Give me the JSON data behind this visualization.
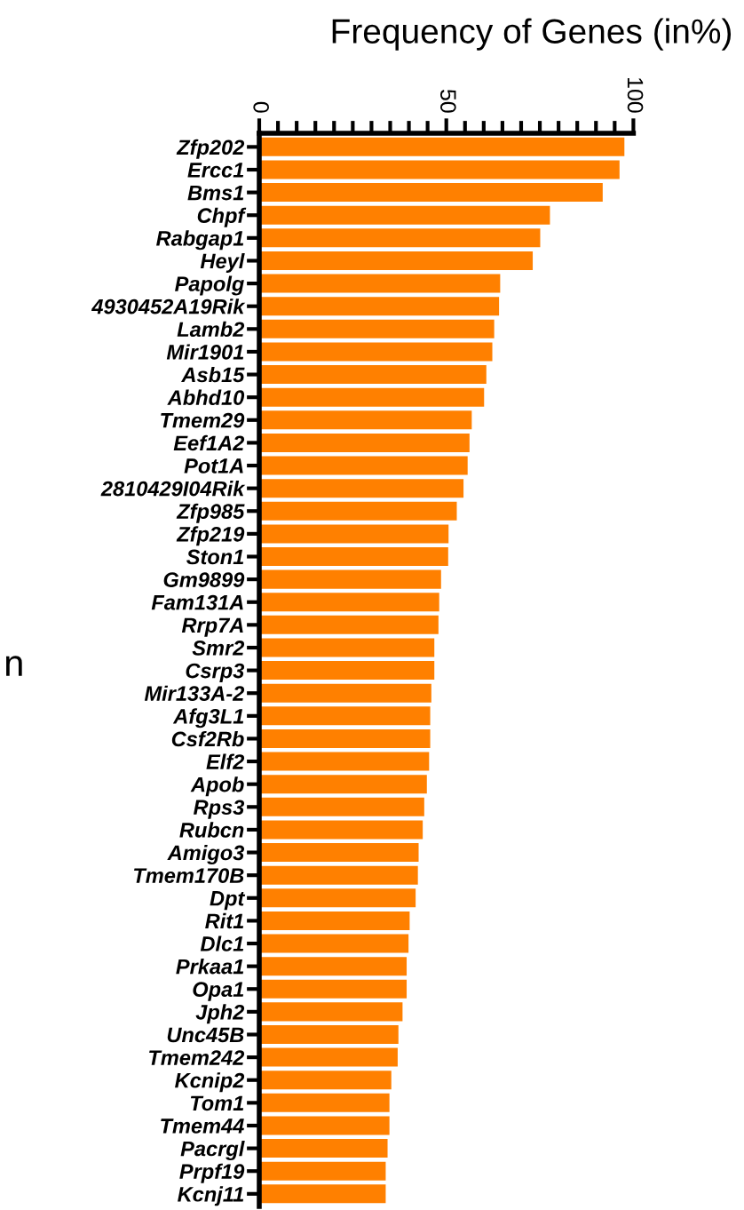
{
  "chart_data": {
    "type": "bar",
    "orientation": "horizontal",
    "title": "Frequency of Genes (in%)",
    "categories": [
      "Zfp202",
      "Ercc1",
      "Bms1",
      "Chpf",
      "Rabgap1",
      "Heyl",
      "Papolg",
      "4930452A19Rik",
      "Lamb2",
      "Mir1901",
      "Asb15",
      "Abhd10",
      "Tmem29",
      "Eef1A2",
      "Pot1A",
      "2810429I04Rik",
      "Zfp985",
      "Zfp219",
      "Ston1",
      "Gm9899",
      "Fam131A",
      "Rrp7A",
      "Smr2",
      "Csrp3",
      "Mir133A-2",
      "Afg3L1",
      "Csf2Rb",
      "Elf2",
      "Apob",
      "Rps3",
      "Rubcn",
      "Amigo3",
      "Tmem170B",
      "Dpt",
      "Rit1",
      "Dlc1",
      "Prkaa1",
      "Opa1",
      "Jph2",
      "Unc45B",
      "Tmem242",
      "Kcnip2",
      "Tom1",
      "Tmem44",
      "Pacrgl",
      "Prpf19",
      "Kcnj11"
    ],
    "values": [
      97.6,
      96.3,
      91.8,
      77.7,
      75.1,
      73.1,
      64.4,
      64.1,
      62.8,
      62.3,
      60.7,
      60.1,
      56.8,
      56.2,
      55.7,
      54.6,
      52.8,
      50.6,
      50.5,
      48.6,
      48.1,
      47.9,
      46.8,
      46.8,
      46.0,
      45.7,
      45.7,
      45.4,
      44.8,
      44.1,
      43.7,
      42.6,
      42.4,
      41.8,
      40.2,
      39.9,
      39.4,
      39.4,
      38.3,
      37.2,
      37.0,
      35.3,
      34.8,
      34.8,
      34.3,
      33.8,
      33.8
    ],
    "color": "#ff8000",
    "xlim": [
      0,
      100
    ],
    "xticks": [
      0,
      {
        "value": 5,
        "label": null
      },
      {
        "value": 10,
        "label": null
      },
      {
        "value": 15,
        "label": null
      },
      {
        "value": 20,
        "label": null
      },
      {
        "value": 25,
        "label": null
      },
      {
        "value": 30,
        "label": null
      },
      {
        "value": 35,
        "label": null
      },
      {
        "value": 40,
        "label": null
      },
      {
        "value": 45,
        "label": null
      },
      50,
      {
        "value": 55,
        "label": null
      },
      {
        "value": 60,
        "label": null
      },
      {
        "value": 65,
        "label": null
      },
      {
        "value": 70,
        "label": null
      },
      {
        "value": 75,
        "label": null
      },
      {
        "value": 80,
        "label": null
      },
      {
        "value": 85,
        "label": null
      },
      {
        "value": 90,
        "label": null
      },
      {
        "value": 95,
        "label": null
      },
      100
    ],
    "annotations": [
      "n"
    ],
    "grid": false
  }
}
